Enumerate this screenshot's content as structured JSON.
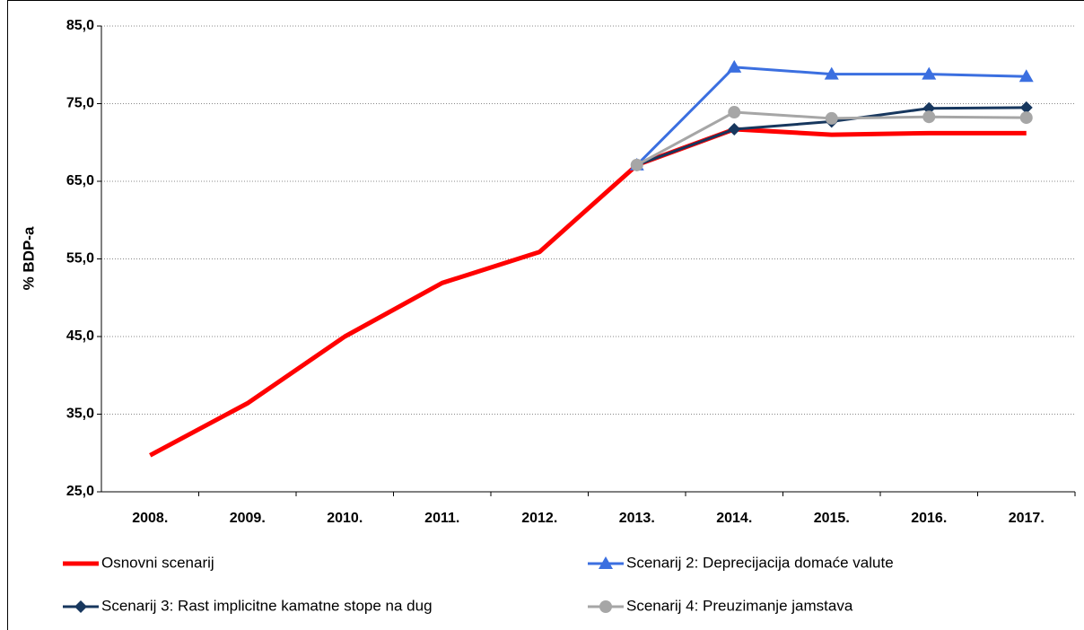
{
  "chart_data": {
    "type": "line",
    "y_label": "% BDP-a",
    "categories": [
      "2008.",
      "2009.",
      "2010.",
      "2011.",
      "2012.",
      "2013.",
      "2014.",
      "2015.",
      "2016.",
      "2017."
    ],
    "series": [
      {
        "name": "Osnovni scenarij",
        "color": "#ff0000",
        "marker": "none",
        "values": [
          29.7,
          36.4,
          45.0,
          51.9,
          55.9,
          67.1,
          71.7,
          71.0,
          71.2,
          71.2
        ]
      },
      {
        "name": "Scenarij 2: Deprecijacija domaće valute",
        "color": "#3b6fe0",
        "marker": "triangle",
        "values": [
          null,
          null,
          null,
          null,
          null,
          67.1,
          79.7,
          78.8,
          78.8,
          78.5
        ]
      },
      {
        "name": "Scenarij 3: Rast implicitne kamatne stope na dug",
        "color": "#17375e",
        "marker": "diamond",
        "values": [
          null,
          null,
          null,
          null,
          null,
          67.1,
          71.7,
          72.7,
          74.4,
          74.5
        ]
      },
      {
        "name": "Scenarij 4: Preuzimanje jamstava",
        "color": "#a6a6a6",
        "marker": "circle",
        "values": [
          null,
          null,
          null,
          null,
          null,
          67.1,
          73.9,
          73.1,
          73.3,
          73.2
        ]
      }
    ],
    "ylim": [
      25,
      85
    ],
    "yticks": [
      {
        "value": 25,
        "label": "25,0"
      },
      {
        "value": 35,
        "label": "35,0"
      },
      {
        "value": 45,
        "label": "45,0"
      },
      {
        "value": 55,
        "label": "55,0"
      },
      {
        "value": 65,
        "label": "65,0"
      },
      {
        "value": 75,
        "label": "75,0"
      },
      {
        "value": 85,
        "label": "85,0"
      }
    ],
    "grid": true,
    "legend": "bottom"
  }
}
